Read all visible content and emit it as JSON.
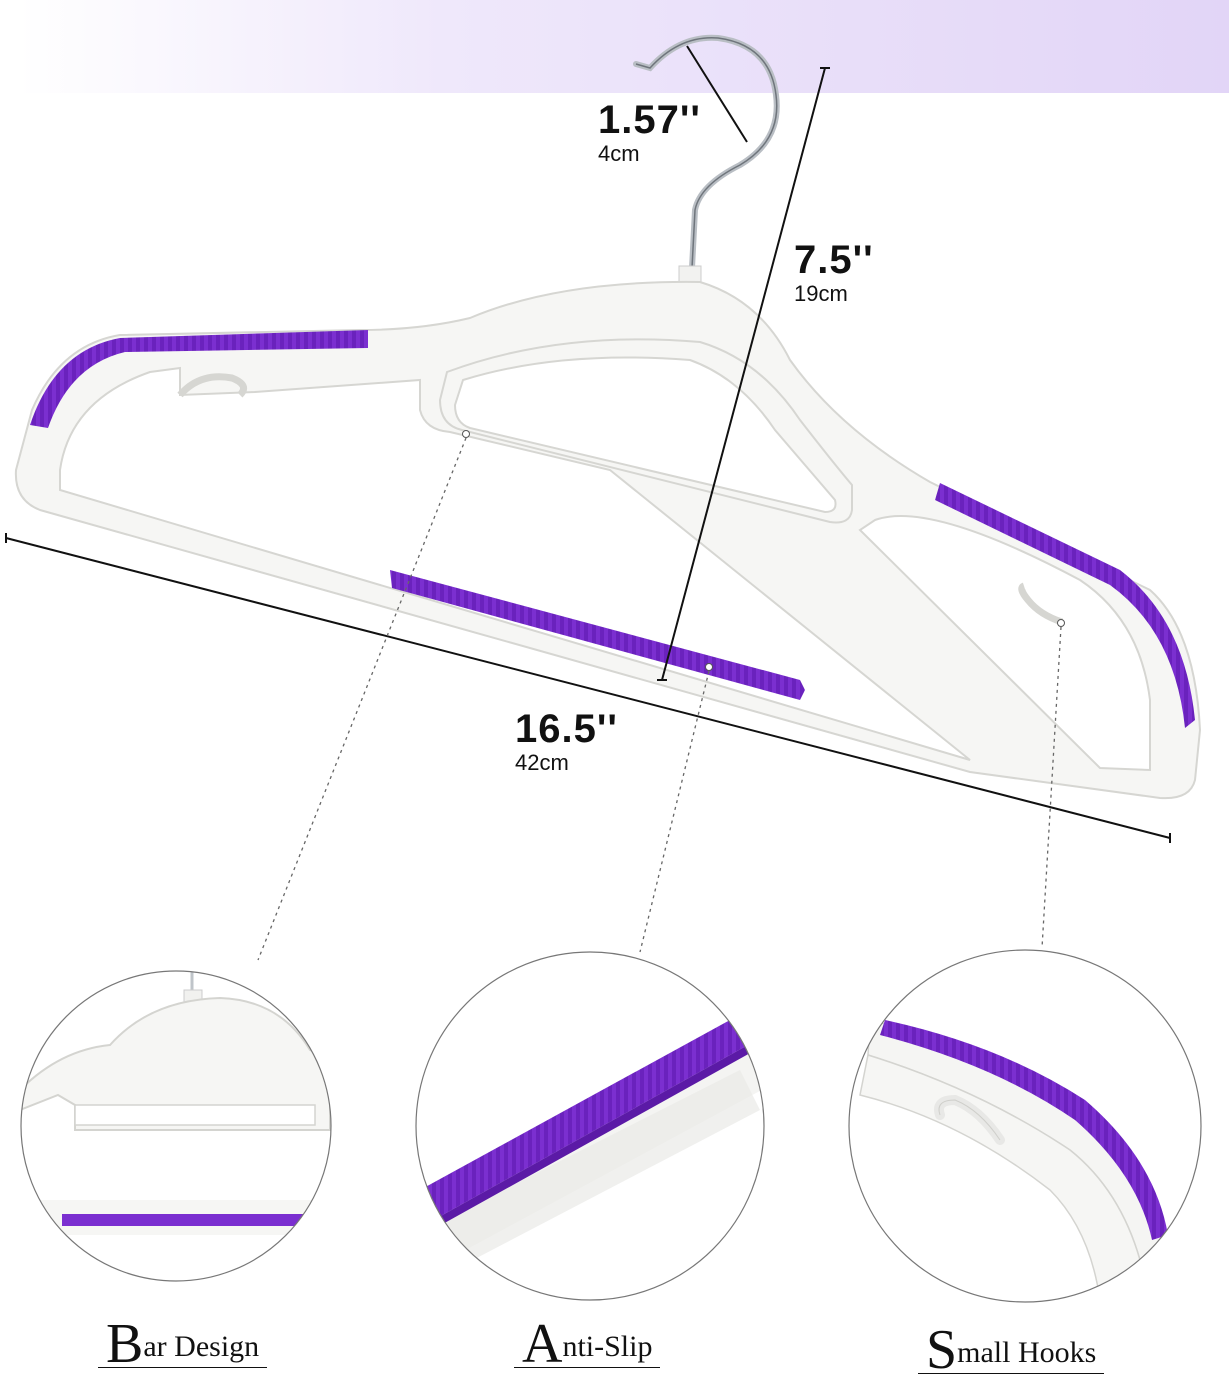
{
  "dimensions": {
    "hook_width": {
      "inch": "1.57''",
      "cm": "4cm"
    },
    "height": {
      "inch": "7.5''",
      "cm": "19cm"
    },
    "length": {
      "inch": "16.5''",
      "cm": "42cm"
    }
  },
  "features": [
    {
      "initial": "B",
      "rest": "ar Design"
    },
    {
      "initial": "A",
      "rest": "nti-Slip"
    },
    {
      "initial": "S",
      "rest": "mall Hooks"
    }
  ],
  "colors": {
    "accent": "#7b2fd0",
    "hanger": "#f5f5f3",
    "band": "#e2d5f7"
  }
}
